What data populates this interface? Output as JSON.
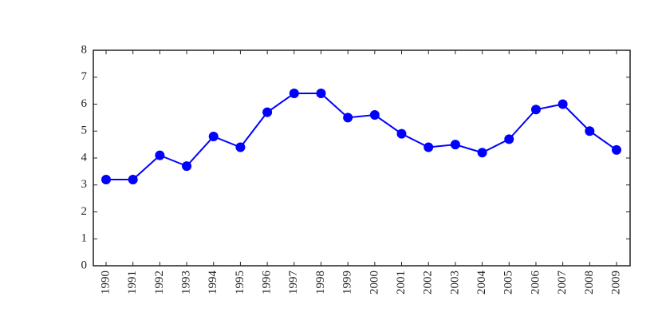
{
  "chart_data": {
    "type": "line",
    "categories": [
      "1990",
      "1991",
      "1992",
      "1993",
      "1994",
      "1995",
      "1996",
      "1997",
      "1998",
      "1999",
      "2000",
      "2001",
      "2002",
      "2003",
      "2004",
      "2005",
      "2006",
      "2007",
      "2008",
      "2009"
    ],
    "values": [
      3.2,
      3.2,
      4.1,
      3.7,
      4.8,
      4.4,
      5.7,
      6.4,
      6.4,
      5.5,
      5.6,
      4.9,
      4.4,
      4.5,
      4.2,
      4.7,
      5.8,
      6.0,
      5.0,
      4.3
    ],
    "color": "#0000ff",
    "ylim": [
      0,
      8
    ],
    "yticks": [
      0,
      1,
      2,
      3,
      4,
      5,
      6,
      7,
      8
    ],
    "grid": false
  }
}
